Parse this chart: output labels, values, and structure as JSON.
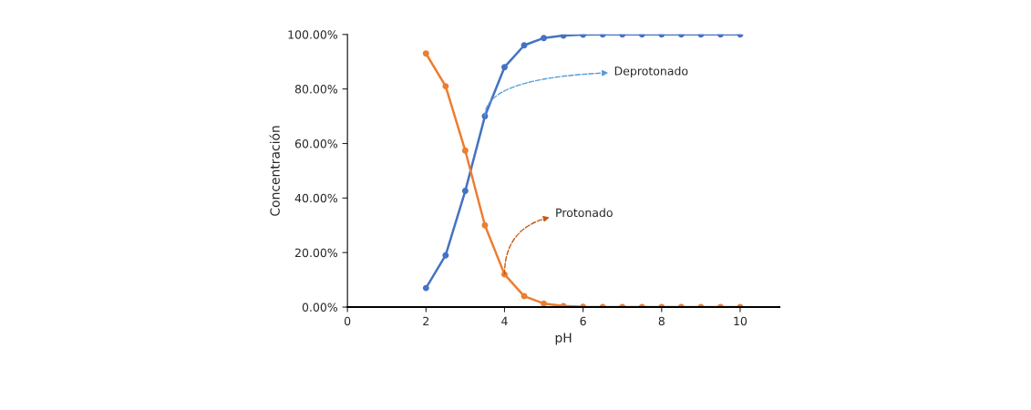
{
  "chart_data": {
    "type": "line",
    "xlabel": "pH",
    "ylabel": "Concentración",
    "x": [
      2,
      2.5,
      3,
      3.5,
      4,
      4.5,
      5,
      5.5,
      6,
      6.5,
      7,
      7.5,
      8,
      8.5,
      9,
      9.5,
      10
    ],
    "series": [
      {
        "color": "#4472c4",
        "values": [
          7,
          19,
          42.6,
          70,
          88,
          96,
          98.7,
          99.6,
          99.9,
          100,
          100,
          100,
          100,
          100,
          100,
          100,
          100
        ]
      },
      {
        "color": "#ed7d31",
        "values": [
          93,
          81,
          57.4,
          30,
          12,
          4,
          1.3,
          0.4,
          0.1,
          0,
          0,
          0,
          0,
          0,
          0,
          0,
          0
        ]
      }
    ],
    "xlim": [
      0,
      11
    ],
    "xticks": [
      0,
      2,
      4,
      6,
      8,
      10
    ],
    "ylim": [
      0,
      100
    ],
    "yticks": [
      {
        "value": 0,
        "label": "0.00%"
      },
      {
        "value": 20,
        "label": "20.00%"
      },
      {
        "value": 40,
        "label": "40.00%"
      },
      {
        "value": 60,
        "label": "60.00%"
      },
      {
        "value": 80,
        "label": "80.00%"
      },
      {
        "value": 100,
        "label": "100.00%"
      }
    ],
    "annotations": [
      {
        "text": "Deprotonado",
        "x": 3.5,
        "y": 70
      },
      {
        "text": "Protonado",
        "x": 4,
        "y": 12
      }
    ],
    "marker": "circle",
    "line_style": "solid",
    "grid": false,
    "legend": false
  }
}
